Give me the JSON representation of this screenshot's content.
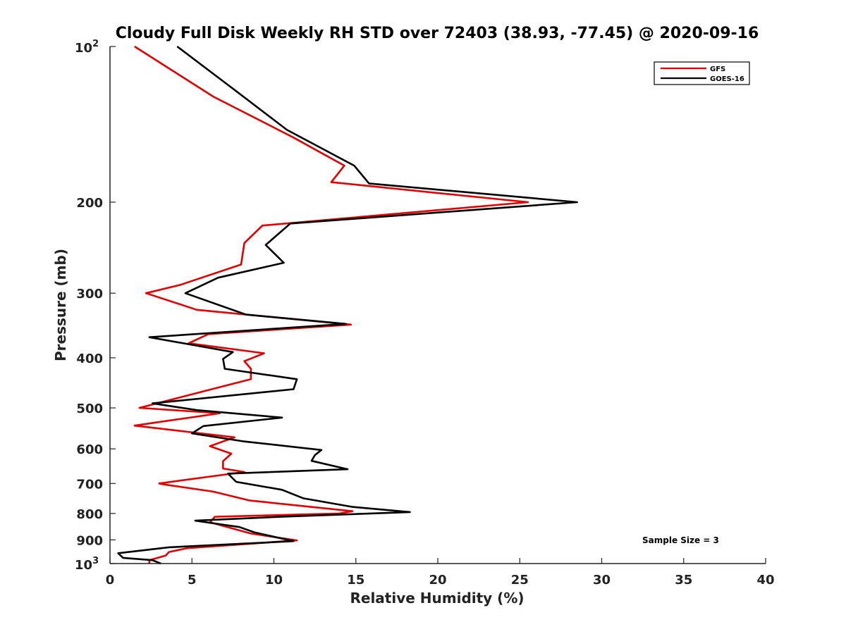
{
  "chart_data": {
    "type": "line",
    "title": "Cloudy Full Disk Weekly RH STD over 72403 (38.93, -77.45) @ 2020-09-16",
    "xlabel": "Relative Humidity (%)",
    "ylabel": "Pressure (mb)",
    "xlim": [
      0,
      40
    ],
    "ylim": [
      100,
      1000
    ],
    "yscale": "log",
    "y_reversed": true,
    "x_ticks": [
      "0",
      "5",
      "10",
      "15",
      "20",
      "25",
      "30",
      "35",
      "40"
    ],
    "y_ticks": [
      {
        "value": 100,
        "base": "10",
        "exp": "2"
      },
      {
        "value": 200,
        "label": "200"
      },
      {
        "value": 300,
        "label": "300"
      },
      {
        "value": 400,
        "label": "400"
      },
      {
        "value": 500,
        "label": "500"
      },
      {
        "value": 600,
        "label": "600"
      },
      {
        "value": 700,
        "label": "700"
      },
      {
        "value": 800,
        "label": "800"
      },
      {
        "value": 900,
        "label": "900"
      },
      {
        "value": 1000,
        "base": "10",
        "exp": "3"
      }
    ],
    "legend_position": "top-right",
    "annotation": "Sample Size = 3",
    "series": [
      {
        "name": "GFS",
        "color": "#e00000",
        "points": [
          [
            1.5,
            100
          ],
          [
            6.3,
            125
          ],
          [
            11.2,
            150
          ],
          [
            14.3,
            170
          ],
          [
            13.5,
            183
          ],
          [
            25.5,
            200
          ],
          [
            9.3,
            222
          ],
          [
            8.2,
            240
          ],
          [
            8.0,
            264
          ],
          [
            4.3,
            289
          ],
          [
            2.2,
            300
          ],
          [
            5.3,
            323
          ],
          [
            14.7,
            345
          ],
          [
            6.0,
            360
          ],
          [
            4.8,
            375
          ],
          [
            9.4,
            392
          ],
          [
            8.2,
            406
          ],
          [
            8.6,
            420
          ],
          [
            8.6,
            440
          ],
          [
            6.0,
            462
          ],
          [
            1.8,
            500
          ],
          [
            6.7,
            512
          ],
          [
            1.5,
            541
          ],
          [
            7.6,
            570
          ],
          [
            6.1,
            593
          ],
          [
            7.4,
            613
          ],
          [
            6.9,
            634
          ],
          [
            6.9,
            655
          ],
          [
            8.2,
            665
          ],
          [
            3.0,
            700
          ],
          [
            3.3,
            703
          ],
          [
            6.3,
            726
          ],
          [
            8.5,
            755
          ],
          [
            14.8,
            792
          ],
          [
            14.0,
            800
          ],
          [
            6.4,
            812
          ],
          [
            6.1,
            832
          ],
          [
            8.6,
            875
          ],
          [
            11.4,
            902
          ],
          [
            4.7,
            934
          ],
          [
            3.6,
            950
          ],
          [
            3.4,
            965
          ],
          [
            2.4,
            985
          ],
          [
            2.4,
            1000
          ]
        ]
      },
      {
        "name": "GOES-16",
        "color": "#000000",
        "points": [
          [
            4.1,
            100
          ],
          [
            7.4,
            120
          ],
          [
            10.8,
            145
          ],
          [
            14.9,
            170
          ],
          [
            15.8,
            184
          ],
          [
            28.5,
            200
          ],
          [
            11.0,
            220
          ],
          [
            9.5,
            242
          ],
          [
            10.6,
            262
          ],
          [
            6.6,
            280
          ],
          [
            4.6,
            300
          ],
          [
            8.3,
            330
          ],
          [
            14.4,
            344
          ],
          [
            2.4,
            365
          ],
          [
            7.5,
            390
          ],
          [
            6.9,
            402
          ],
          [
            7.0,
            420
          ],
          [
            11.4,
            440
          ],
          [
            11.2,
            460
          ],
          [
            2.6,
            490
          ],
          [
            5.3,
            505
          ],
          [
            10.5,
            522
          ],
          [
            5.7,
            542
          ],
          [
            5.0,
            560
          ],
          [
            8.1,
            580
          ],
          [
            12.9,
            603
          ],
          [
            12.5,
            617
          ],
          [
            12.3,
            633
          ],
          [
            14.5,
            657
          ],
          [
            7.2,
            670
          ],
          [
            7.7,
            695
          ],
          [
            10.5,
            720
          ],
          [
            11.8,
            748
          ],
          [
            14.8,
            777
          ],
          [
            18.3,
            795
          ],
          [
            10.4,
            812
          ],
          [
            5.2,
            826
          ],
          [
            7.9,
            850
          ],
          [
            8.8,
            870
          ],
          [
            11.2,
            905
          ],
          [
            3.6,
            930
          ],
          [
            0.5,
            955
          ],
          [
            0.8,
            975
          ],
          [
            2.6,
            985
          ],
          [
            3.1,
            1000
          ]
        ]
      }
    ]
  }
}
